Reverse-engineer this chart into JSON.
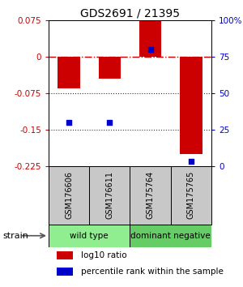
{
  "title": "GDS2691 / 21395",
  "samples": [
    "GSM176606",
    "GSM176611",
    "GSM175764",
    "GSM175765"
  ],
  "log10_ratios": [
    -0.065,
    -0.045,
    0.075,
    -0.2
  ],
  "percentile_ranks": [
    30,
    30,
    80,
    3
  ],
  "bar_color": "#cc0000",
  "dot_color": "#0000cc",
  "ylim_left": [
    -0.225,
    0.075
  ],
  "yticks_left": [
    0.075,
    0,
    -0.075,
    -0.15,
    -0.225
  ],
  "ylim_right": [
    0,
    100
  ],
  "yticks_right": [
    100,
    75,
    50,
    25,
    0
  ],
  "ytick_labels_right": [
    "100%",
    "75",
    "50",
    "25",
    "0"
  ],
  "ytick_labels_left": [
    "0.075",
    "0",
    "-0.075",
    "-0.15",
    "-0.225"
  ],
  "groups": [
    {
      "label": "wild type",
      "cols": [
        0,
        1
      ],
      "color": "#90ee90"
    },
    {
      "label": "dominant negative",
      "cols": [
        2,
        3
      ],
      "color": "#66cc66"
    }
  ],
  "strain_label": "strain",
  "legend_items": [
    {
      "color": "#cc0000",
      "label": "log10 ratio"
    },
    {
      "color": "#0000cc",
      "label": "percentile rank within the sample"
    }
  ],
  "hline_0_color": "#cc0000",
  "dotted_line_color": "#333333",
  "background_color": "#ffffff",
  "plot_bg_color": "#ffffff",
  "bar_width": 0.55
}
